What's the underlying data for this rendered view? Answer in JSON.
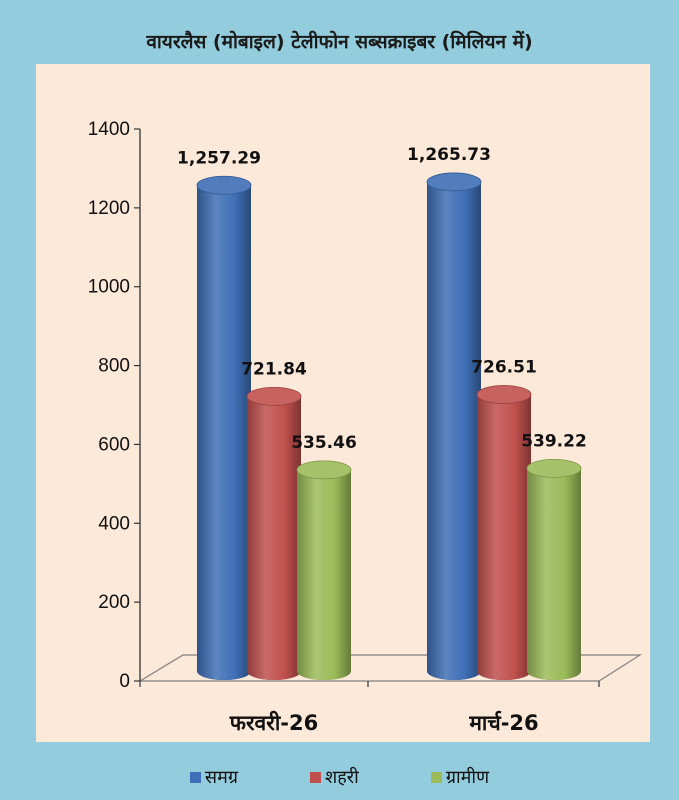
{
  "chart_data": {
    "type": "bar",
    "title": "वायरलैस (मोबाइल) टेलीफोन सब्सक्राइबर (मिलियन में)",
    "categories": [
      "फरवरी-26",
      "मार्च-26"
    ],
    "series": [
      {
        "name": "समग्र",
        "values": [
          1257.29,
          1265.73
        ],
        "labels": [
          "1,257.29",
          "1,265.73"
        ],
        "color": "#3f6fb6"
      },
      {
        "name": "शहरी",
        "values": [
          721.84,
          726.51
        ],
        "labels": [
          "721.84",
          "726.51"
        ],
        "color": "#c0504d"
      },
      {
        "name": "ग्रामीण",
        "values": [
          535.46,
          539.22
        ],
        "labels": [
          "535.46",
          "539.22"
        ],
        "color": "#9bbb59"
      }
    ],
    "yticks": [
      "0",
      "200",
      "400",
      "600",
      "800",
      "1000",
      "1200",
      "1400"
    ],
    "ylim": [
      0,
      1400
    ],
    "xlabel": "",
    "ylabel": "",
    "legend_position": "bottom",
    "grid": false
  },
  "colors": {
    "frame_background": "#93cddd",
    "plot_background": "#fde9d9"
  }
}
